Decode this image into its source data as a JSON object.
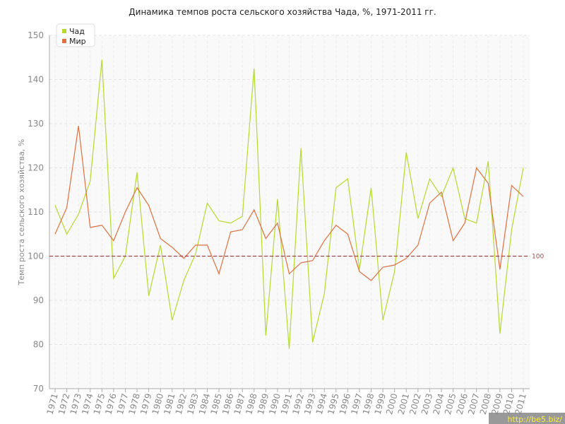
{
  "chart_data": {
    "type": "line",
    "title": "Динамика темпов роста сельского хозяйства Чада, %, 1971-2011 гг.",
    "y_label": "Темп роста сельского хозяйства, %",
    "categories": [
      "1971",
      "1972",
      "1973",
      "1974",
      "1975",
      "1976",
      "1977",
      "1978",
      "1979",
      "1980",
      "1981",
      "1982",
      "1983",
      "1984",
      "1985",
      "1986",
      "1987",
      "1988",
      "1989",
      "1990",
      "1991",
      "1992",
      "1993",
      "1994",
      "1995",
      "1996",
      "1997",
      "1998",
      "1999",
      "2000",
      "2001",
      "2002",
      "2003",
      "2004",
      "2005",
      "2006",
      "2007",
      "2008",
      "2009",
      "2010",
      "2011"
    ],
    "series": [
      {
        "name": "Чад",
        "color": "#b5d92e",
        "values": [
          111.5,
          105,
          109.5,
          117,
          144.5,
          95,
          100,
          119,
          91,
          102.5,
          85.5,
          94.5,
          100.5,
          112,
          108,
          107.5,
          109,
          142.5,
          82,
          113,
          79,
          124.5,
          80.5,
          91.5,
          115.5,
          117.5,
          97,
          115.5,
          85.5,
          96.5,
          123.5,
          108.5,
          117.5,
          113.5,
          120,
          108.5,
          107.5,
          121.5,
          82.5,
          106,
          120
        ]
      },
      {
        "name": "Мир",
        "color": "#e0703f",
        "values": [
          105,
          111,
          129.5,
          106.5,
          107,
          103.5,
          110,
          115.5,
          111.5,
          104,
          102,
          99.5,
          102.5,
          102.5,
          96,
          105.5,
          106,
          110.5,
          104,
          107.5,
          96,
          98.5,
          99,
          103.5,
          107,
          105,
          96.5,
          94.5,
          97.5,
          98,
          99.5,
          102.5,
          112,
          114.5,
          103.5,
          107.5,
          120,
          116.5,
          97,
          116,
          113.5
        ]
      }
    ],
    "ylim": [
      70,
      150
    ],
    "yticks": [
      70,
      80,
      90,
      100,
      110,
      120,
      130,
      140,
      150
    ],
    "reference_line": 100,
    "reference_color": "#a0454a",
    "grid": true,
    "legend": "top-left",
    "watermark": "http://be5.biz/"
  }
}
